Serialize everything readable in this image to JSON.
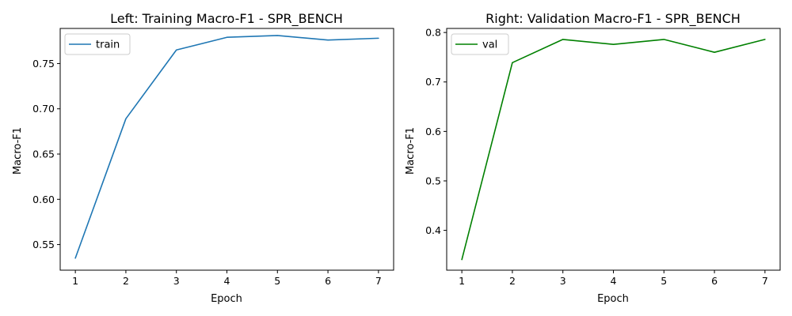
{
  "chart_data": [
    {
      "type": "line",
      "title": "Left: Training Macro-F1 - SPR_BENCH",
      "xlabel": "Epoch",
      "ylabel": "Macro-F1",
      "x": [
        1,
        2,
        3,
        4,
        5,
        6,
        7
      ],
      "xlim": [
        0.7,
        7.3
      ],
      "ylim": [
        0.5217,
        0.7888
      ],
      "xticks": [
        "1",
        "2",
        "3",
        "4",
        "5",
        "6",
        "7"
      ],
      "yticks": [
        0.55,
        0.6,
        0.65,
        0.7,
        0.75
      ],
      "ytick_labels": [
        "0.55",
        "0.60",
        "0.65",
        "0.70",
        "0.75"
      ],
      "grid": false,
      "legend_position": "upper-left",
      "series": [
        {
          "name": "train",
          "color": "#1f77b4",
          "values": [
            0.535,
            0.689,
            0.765,
            0.779,
            0.781,
            0.776,
            0.778
          ]
        }
      ]
    },
    {
      "type": "line",
      "title": "Right: Validation Macro-F1 - SPR_BENCH",
      "xlabel": "Epoch",
      "ylabel": "Macro-F1",
      "x": [
        1,
        2,
        3,
        4,
        5,
        6,
        7
      ],
      "xlim": [
        0.7,
        7.3
      ],
      "ylim": [
        0.3195,
        0.8082
      ],
      "xticks": [
        "1",
        "2",
        "3",
        "4",
        "5",
        "6",
        "7"
      ],
      "yticks": [
        0.4,
        0.5,
        0.6,
        0.7,
        0.8
      ],
      "ytick_labels": [
        "0.4",
        "0.5",
        "0.6",
        "0.7",
        "0.8"
      ],
      "grid": false,
      "legend_position": "upper-left",
      "series": [
        {
          "name": "val",
          "color": "#008000",
          "values": [
            0.341,
            0.739,
            0.786,
            0.776,
            0.786,
            0.76,
            0.786
          ]
        }
      ]
    }
  ]
}
